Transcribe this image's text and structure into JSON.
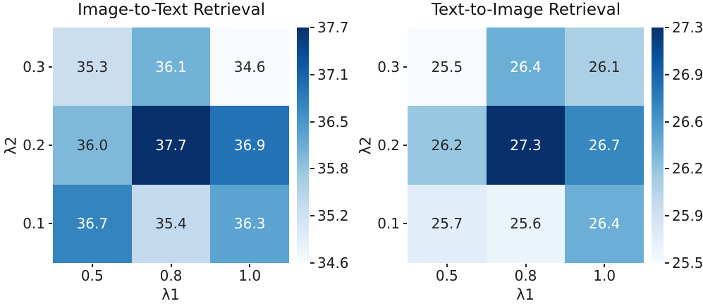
{
  "figure": {
    "background": "#ffffff",
    "annotation_dark_color": "#262626",
    "annotation_light_color": "#ffffff",
    "colormap_name": "Blues",
    "colormap_stops": [
      "#f7fbff",
      "#deebf7",
      "#c6dbef",
      "#9ecae1",
      "#6baed6",
      "#4292c6",
      "#2171b5",
      "#08519c",
      "#08306b"
    ]
  },
  "chart_data": [
    {
      "type": "heatmap",
      "title": "Image-to-Text Retrieval",
      "xlabel": "λ1",
      "ylabel": "λ2",
      "x_categories": [
        "0.5",
        "0.8",
        "1.0"
      ],
      "y_categories": [
        "0.3",
        "0.2",
        "0.1"
      ],
      "values": [
        [
          35.3,
          36.1,
          34.6
        ],
        [
          36.0,
          37.7,
          36.9
        ],
        [
          36.7,
          35.4,
          36.3
        ]
      ],
      "cell_labels": [
        [
          "35.3",
          "36.1",
          "34.6"
        ],
        [
          "36.0",
          "37.7",
          "36.9"
        ],
        [
          "36.7",
          "35.4",
          "36.3"
        ]
      ],
      "cell_colors": [
        [
          "#cbdef0",
          "#72b2d7",
          "#f7fbff"
        ],
        [
          "#7fb9da",
          "#08306b",
          "#2373b6"
        ],
        [
          "#3484bf",
          "#c3daee",
          "#5ba3d0"
        ]
      ],
      "cell_text_colors": [
        [
          "#262626",
          "#ffffff",
          "#262626"
        ],
        [
          "#262626",
          "#ffffff",
          "#ffffff"
        ],
        [
          "#ffffff",
          "#262626",
          "#ffffff"
        ]
      ],
      "vmin": 34.6,
      "vmax": 37.7,
      "colorbar_ticks": [
        "37.7",
        "37.1",
        "36.5",
        "35.8",
        "35.2",
        "34.6"
      ],
      "legend_position": "right-colorbar",
      "grid": false
    },
    {
      "type": "heatmap",
      "title": "Text-to-Image Retrieval",
      "xlabel": "λ1",
      "ylabel": "λ2",
      "x_categories": [
        "0.5",
        "0.8",
        "1.0"
      ],
      "y_categories": [
        "0.3",
        "0.2",
        "0.1"
      ],
      "values": [
        [
          25.5,
          26.4,
          26.1
        ],
        [
          26.2,
          27.3,
          26.7
        ],
        [
          25.7,
          25.6,
          26.4
        ]
      ],
      "cell_labels": [
        [
          "25.5",
          "26.4",
          "26.1"
        ],
        [
          "26.2",
          "27.3",
          "26.7"
        ],
        [
          "25.7",
          "25.6",
          "26.4"
        ]
      ],
      "cell_colors": [
        [
          "#f7fbff",
          "#6baed6",
          "#abcfe5"
        ],
        [
          "#98c7e0",
          "#08306b",
          "#3787c0"
        ],
        [
          "#e1edf8",
          "#ecf4fb",
          "#6baed6"
        ]
      ],
      "cell_text_colors": [
        [
          "#262626",
          "#ffffff",
          "#262626"
        ],
        [
          "#262626",
          "#ffffff",
          "#ffffff"
        ],
        [
          "#262626",
          "#262626",
          "#ffffff"
        ]
      ],
      "vmin": 25.5,
      "vmax": 27.3,
      "colorbar_ticks": [
        "27.3",
        "26.9",
        "26.6",
        "26.2",
        "25.9",
        "25.5"
      ],
      "legend_position": "right-colorbar",
      "grid": false
    }
  ]
}
